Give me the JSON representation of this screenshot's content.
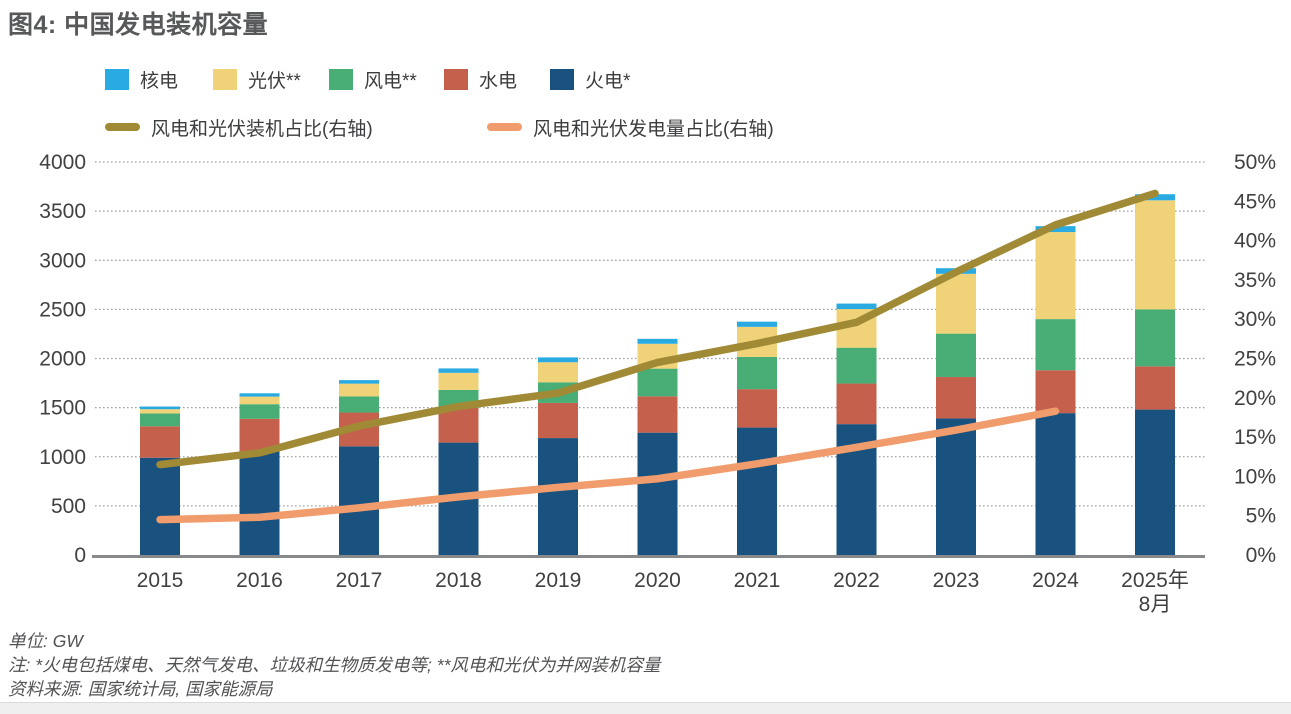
{
  "page": {
    "title": "图4: 中国发电装机容量",
    "footnotes": [
      "单位: GW",
      "注: *火电包括煤电、天然气发电、垃圾和生物质发电等; **风电和光伏为并网装机容量",
      "资料来源: 国家统计局, 国家能源局"
    ]
  },
  "colors": {
    "nuclear": "#29abe2",
    "solar": "#f0d379",
    "wind": "#48ae76",
    "hydro": "#c4604c",
    "thermal": "#19517f",
    "capacity_share_line": "#a18a35",
    "generation_share_line": "#f19c6c",
    "gridline": "#a0a2a5",
    "axis_line": "#87898b",
    "axis_text": "#414042",
    "title_text": "#57585a"
  },
  "legend": {
    "bars": [
      {
        "label": "核电",
        "color": "#29abe2"
      },
      {
        "label": "光伏**",
        "color": "#f0d379"
      },
      {
        "label": "风电**",
        "color": "#48ae76"
      },
      {
        "label": "水电",
        "color": "#c4604c"
      },
      {
        "label": "火电*",
        "color": "#19517f"
      }
    ],
    "lines": [
      {
        "label": "风电和光伏装机占比(右轴)",
        "color": "#a18a35"
      },
      {
        "label": "风电和光伏发电量占比(右轴)",
        "color": "#f19c6c"
      }
    ]
  },
  "chart_data": {
    "type": "bar",
    "subtype": "stacked-bars-with-lines-dual-axis",
    "title": "图4: 中国发电装机容量",
    "unit": "GW",
    "grid": "dotted-horizontal",
    "legend_position": "top",
    "categories": [
      "2015",
      "2016",
      "2017",
      "2018",
      "2019",
      "2020",
      "2021",
      "2022",
      "2023",
      "2024",
      "2025年\n8月"
    ],
    "series": [
      {
        "name": "火电*",
        "color": "#19517f",
        "values": [
          990,
          1054,
          1106,
          1144,
          1190,
          1245,
          1297,
          1332,
          1390,
          1444,
          1480
        ]
      },
      {
        "name": "水电",
        "color": "#c4604c",
        "values": [
          320,
          332,
          344,
          352,
          358,
          370,
          391,
          413,
          422,
          436,
          440
        ]
      },
      {
        "name": "风电**",
        "color": "#48ae76",
        "values": [
          131,
          149,
          164,
          184,
          210,
          282,
          328,
          365,
          441,
          521,
          580
        ]
      },
      {
        "name": "光伏**",
        "color": "#f0d379",
        "values": [
          43,
          77,
          130,
          174,
          204,
          253,
          306,
          393,
          609,
          886,
          1110
        ]
      },
      {
        "name": "核电",
        "color": "#29abe2",
        "values": [
          27,
          34,
          36,
          45,
          49,
          50,
          53,
          56,
          57,
          60,
          62
        ]
      }
    ],
    "line_series": [
      {
        "name": "风电和光伏装机占比(右轴)",
        "axis": "right",
        "color": "#a18a35",
        "values": [
          11.5,
          13.0,
          16.4,
          18.9,
          20.6,
          24.5,
          26.9,
          29.6,
          36.0,
          42.0,
          46.0
        ]
      },
      {
        "name": "风电和光伏发电量占比(右轴)",
        "axis": "right",
        "color": "#f19c6c",
        "values": [
          4.5,
          4.8,
          6.0,
          7.4,
          8.6,
          9.7,
          11.6,
          13.7,
          15.9,
          18.3
        ]
      }
    ],
    "left_axis": {
      "max": 4000,
      "min": 0,
      "tick_step": 500,
      "ticks": [
        0,
        500,
        1000,
        1500,
        2000,
        2500,
        3000,
        3500,
        4000
      ]
    },
    "right_axis": {
      "max": 50,
      "min": 0,
      "tick_step": 5,
      "tick_labels": [
        "0%",
        "5%",
        "10%",
        "15%",
        "20%",
        "25%",
        "30%",
        "35%",
        "40%",
        "45%",
        "50%"
      ]
    }
  }
}
